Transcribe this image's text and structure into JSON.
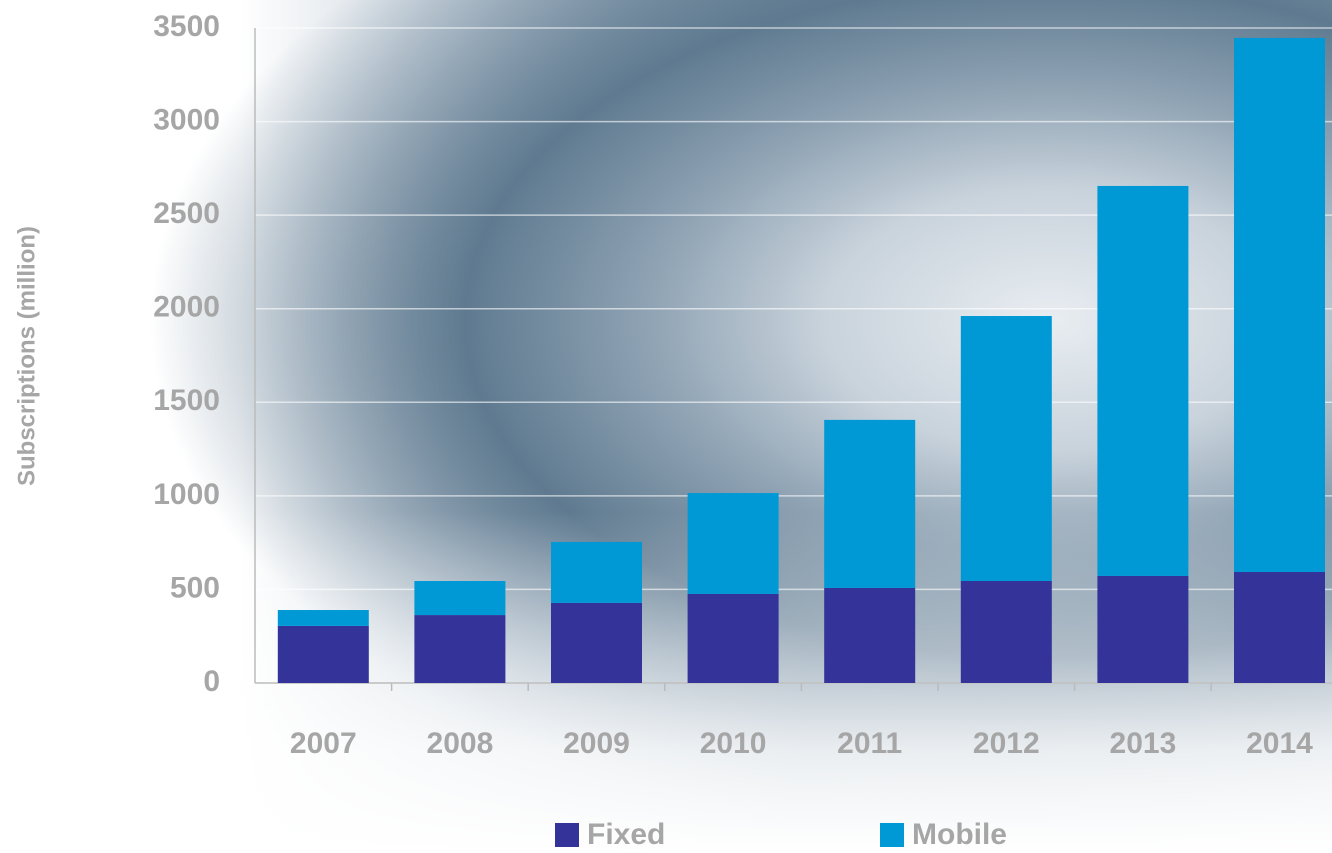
{
  "chart_data": {
    "type": "stacked-bar",
    "y_label": "Subscriptions (million)",
    "categories": [
      "2007",
      "2008",
      "2009",
      "2010",
      "2011",
      "2012",
      "2013",
      "2014"
    ],
    "series": [
      {
        "name": "Fixed",
        "color": "#333399",
        "values": [
          305,
          363,
          428,
          476,
          508,
          545,
          572,
          593
        ]
      },
      {
        "name": "Mobile",
        "color": "#0099d6",
        "values": [
          85,
          182,
          326,
          539,
          898,
          1416,
          2084,
          2854
        ]
      }
    ],
    "ylim": [
      0,
      3500
    ],
    "yticks": [
      0,
      500,
      1000,
      1500,
      2000,
      2500,
      3000,
      3500
    ],
    "grid": true
  }
}
